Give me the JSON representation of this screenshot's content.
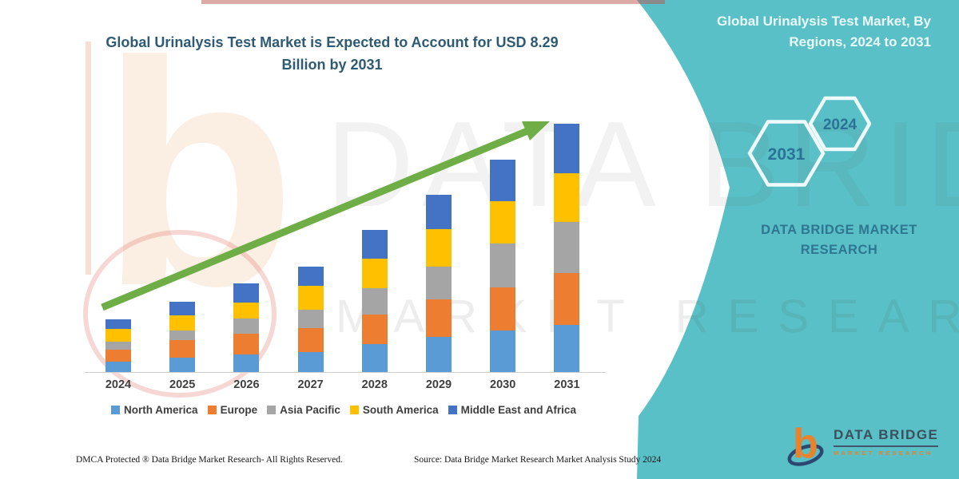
{
  "header": {
    "title": "Global Urinalysis Test Market is Expected to Account for USD 8.29 Billion by 2031"
  },
  "sidebar": {
    "heading": "Global Urinalysis Test Market, By Regions, 2024 to 2031",
    "hexagon_labels": [
      "2031",
      "2024"
    ],
    "brand_text": "DATA BRIDGE MARKET RESEARCH"
  },
  "watermarks": {
    "line1": "DATA BRIDGE",
    "line2": "MARKET RESEARCH",
    "logo_letter": "b"
  },
  "footer": {
    "dmca": "DMCA Protected ® Data Bridge Market Research-  All Rights Reserved.",
    "source": "Source: Data Bridge Market Research  Market Analysis Study 2024"
  },
  "logo": {
    "mark": "b",
    "name": "DATA BRIDGE",
    "tagline": "MARKET RESEARCH"
  },
  "colors": {
    "teal_panel": "#58C0C6",
    "title_text": "#2E5A73",
    "arrow_green": "#6FAE47",
    "hexagon_stroke": "#EFFBFB",
    "hexagon_year_text": "#2B7396",
    "logo_orange": "#E8822C",
    "logo_navy": "#2C4770",
    "axis_line": "#CFCFCF"
  },
  "chart_data": {
    "type": "bar",
    "stacked": true,
    "title": "Global Urinalysis Test Market is Expected to Account for USD 8.29 Billion by 2031",
    "unit": "USD billion (estimated from bar heights; 2031 total labeled as 8.29)",
    "categories": [
      "2024",
      "2025",
      "2026",
      "2027",
      "2028",
      "2029",
      "2030",
      "2031"
    ],
    "series": [
      {
        "name": "North America",
        "color": "#5B9BD5",
        "values": [
          0.35,
          0.48,
          0.59,
          0.66,
          0.93,
          1.17,
          1.39,
          1.57
        ]
      },
      {
        "name": "Europe",
        "color": "#ED7D31",
        "values": [
          0.4,
          0.59,
          0.69,
          0.8,
          0.99,
          1.25,
          1.44,
          1.73
        ]
      },
      {
        "name": "Asia Pacific",
        "color": "#A5A5A5",
        "values": [
          0.27,
          0.32,
          0.51,
          0.61,
          0.88,
          1.09,
          1.47,
          1.71
        ]
      },
      {
        "name": "South America",
        "color": "#FFC000",
        "values": [
          0.43,
          0.51,
          0.53,
          0.8,
          0.99,
          1.25,
          1.39,
          1.63
        ]
      },
      {
        "name": "Middle East and Africa",
        "color": "#4472C4",
        "values": [
          0.32,
          0.45,
          0.64,
          0.66,
          0.96,
          1.17,
          1.41,
          1.65
        ]
      }
    ],
    "totals": [
      1.77,
      2.35,
      2.96,
      3.53,
      4.75,
      5.93,
      7.1,
      8.29
    ],
    "value_axis_hidden": true,
    "grid": false,
    "legend_position": "bottom",
    "annotations": [
      "green upward trend arrow from 2024 to 2031"
    ]
  }
}
